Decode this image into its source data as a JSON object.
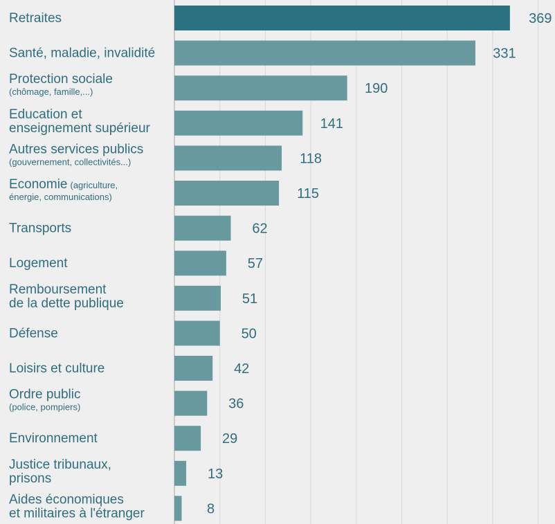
{
  "chart_data": {
    "type": "bar",
    "orientation": "horizontal",
    "categories": [
      {
        "main": [
          "Retraites"
        ],
        "sub": []
      },
      {
        "main": [
          "Santé, maladie, invalidité"
        ],
        "sub": []
      },
      {
        "main": [
          "Protection sociale"
        ],
        "sub": [
          "(chômage, famille,...)"
        ]
      },
      {
        "main": [
          "Education et",
          "enseignement supérieur"
        ],
        "sub": []
      },
      {
        "main": [
          "Autres services publics"
        ],
        "sub": [
          "(gouvernement, collectivités...)"
        ]
      },
      {
        "main": [
          "Economie"
        ],
        "inline_sub": "(agriculture,",
        "sub": [
          "énergie, communications)"
        ]
      },
      {
        "main": [
          "Transports"
        ],
        "sub": []
      },
      {
        "main": [
          "Logement"
        ],
        "sub": []
      },
      {
        "main": [
          "Remboursement",
          "de la dette publique"
        ],
        "sub": []
      },
      {
        "main": [
          "Défense"
        ],
        "sub": []
      },
      {
        "main": [
          "Loisirs et culture"
        ],
        "sub": []
      },
      {
        "main": [
          "Ordre public"
        ],
        "sub": [
          "(police, pompiers)"
        ]
      },
      {
        "main": [
          "Environnement"
        ],
        "sub": []
      },
      {
        "main": [
          "Justice tribunaux,",
          "prisons"
        ],
        "sub": []
      },
      {
        "main": [
          "Aides économiques",
          "et militaires à l'étranger"
        ],
        "sub": []
      }
    ],
    "values": [
      369,
      331,
      190,
      141,
      118,
      115,
      62,
      57,
      51,
      50,
      42,
      36,
      29,
      13,
      8
    ],
    "value_labels": [
      "369",
      "331",
      "190",
      "141",
      "118",
      "115",
      "62",
      "57",
      "51",
      "50",
      "42",
      "36",
      "29",
      "13",
      "8"
    ],
    "xlim": [
      0,
      420
    ],
    "grid": true,
    "colors": {
      "highlight": "#2c717f",
      "bar": "#67999f",
      "text": "#2f6e80",
      "background": "#efefef",
      "grid": "#d8d8d8"
    }
  }
}
